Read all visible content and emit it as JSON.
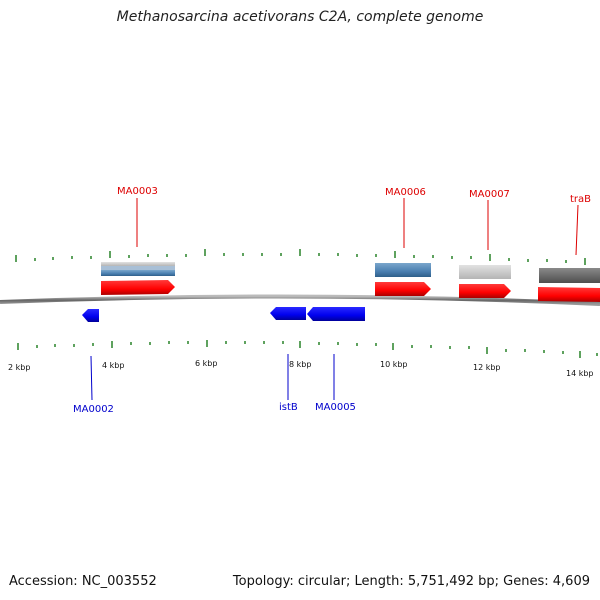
{
  "title": "Methanosarcina acetivorans C2A, complete genome",
  "footer": {
    "accession": "Accession: NC_003552",
    "summary": "Topology: circular; Length: 5,751,492 bp; Genes: 4,609"
  },
  "colors": {
    "backbone": "#777777",
    "tick": "#1a7a1a",
    "forward_gene": "#ff0000",
    "reverse_gene": "#0000ee",
    "label_forward": "#dd0000",
    "label_reverse": "#0000cc",
    "steel_blue": "#4a7fb0",
    "light_gray": "#c8c8c8",
    "dark_gray": "#666666"
  },
  "scale_labels": [
    "2 kbp",
    "4 kbp",
    "6 kbp",
    "8 kbp",
    "10 kbp",
    "12 kbp",
    "14 kbp"
  ],
  "genes": [
    {
      "name": "MA0002",
      "strand": "reverse"
    },
    {
      "name": "MA0003",
      "strand": "forward"
    },
    {
      "name": "istB",
      "strand": "reverse"
    },
    {
      "name": "MA0005",
      "strand": "reverse"
    },
    {
      "name": "MA0006",
      "strand": "forward"
    },
    {
      "name": "MA0007",
      "strand": "forward"
    },
    {
      "name": "traB",
      "strand": "forward"
    }
  ]
}
